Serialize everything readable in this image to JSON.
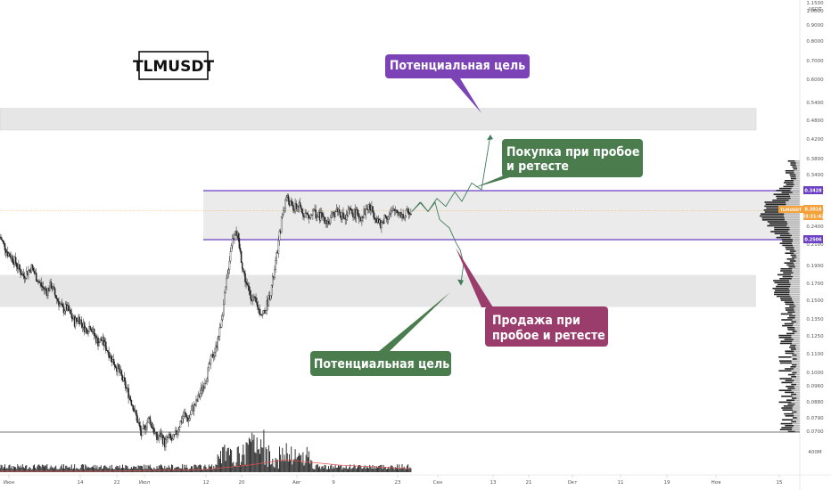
{
  "ticker": "TLMUSDT",
  "price_axis": {
    "currency": "USDT",
    "ticks": [
      "1.1500",
      "1.0000",
      "0.9000",
      "0.8000",
      "0.7000",
      "0.6000",
      "0.5400",
      "0.4800",
      "0.4200",
      "0.3800",
      "0.3400",
      "0.3000",
      "0.2700",
      "0.2400",
      "0.2100",
      "0.1900",
      "0.1700",
      "0.1500",
      "0.1350",
      "0.1250",
      "0.1100",
      "0.1000",
      "0.0960",
      "0.0880",
      "0.0790",
      "0.0700"
    ],
    "badge_resistance": "0.3428",
    "badge_current_label": "TLMUSDT",
    "badge_current_value": "0.3016",
    "badge_current_time": "03:31:42",
    "badge_support": "0.2506",
    "volume_label": "400M"
  },
  "date_axis": {
    "labels": [
      "Июн",
      "14",
      "22",
      "Июл",
      "12",
      "20",
      "Авг",
      "9",
      "23",
      "Сен",
      "13",
      "21",
      "Окт",
      "11",
      "19",
      "Ноя",
      "15"
    ]
  },
  "annotations": {
    "target_up": "Потенциальная цель",
    "buy": [
      "Покупка при пробое",
      "и ретесте"
    ],
    "sell": [
      "Продажа при",
      "пробое и ретесте"
    ],
    "target_down": "Потенциальная цель"
  },
  "colors": {
    "purple": "#7b43b5",
    "green": "#4a7c4e",
    "maroon": "#9a3d6c",
    "candle": "#222222",
    "zone": "#e6e6e6",
    "level_line": "#6a3fc4",
    "current_price": "#f4a13a"
  },
  "chart_data": {
    "type": "candlestick",
    "title": "TLMUSDT",
    "resistance": 0.3428,
    "support": 0.2506,
    "current_price": 0.3016,
    "zones": [
      [
        0.505,
        0.58
      ],
      [
        0.163,
        0.2
      ]
    ],
    "close_series": [
      0.255,
      0.242,
      0.23,
      0.224,
      0.216,
      0.206,
      0.199,
      0.204,
      0.21,
      0.2,
      0.19,
      0.184,
      0.18,
      0.188,
      0.176,
      0.168,
      0.16,
      0.162,
      0.155,
      0.148,
      0.152,
      0.146,
      0.14,
      0.145,
      0.136,
      0.13,
      0.132,
      0.126,
      0.12,
      0.114,
      0.11,
      0.104,
      0.098,
      0.092,
      0.086,
      0.079,
      0.072,
      0.076,
      0.08,
      0.075,
      0.07,
      0.072,
      0.068,
      0.071,
      0.069,
      0.073,
      0.078,
      0.082,
      0.079,
      0.085,
      0.088,
      0.094,
      0.1,
      0.108,
      0.118,
      0.125,
      0.14,
      0.165,
      0.2,
      0.245,
      0.27,
      0.238,
      0.205,
      0.185,
      0.175,
      0.168,
      0.16,
      0.155,
      0.165,
      0.18,
      0.205,
      0.245,
      0.295,
      0.33,
      0.315,
      0.305,
      0.312,
      0.3,
      0.295,
      0.288,
      0.3,
      0.29,
      0.292,
      0.285,
      0.28,
      0.295,
      0.305,
      0.293,
      0.286,
      0.3,
      0.297,
      0.295,
      0.29,
      0.3,
      0.31,
      0.3,
      0.288,
      0.272,
      0.29,
      0.293,
      0.297,
      0.304,
      0.296,
      0.29,
      0.3,
      0.302
    ],
    "projection_up": [
      0.3,
      0.318,
      0.3,
      0.326,
      0.31,
      0.34,
      0.32,
      0.36,
      0.345,
      0.49
    ],
    "projection_down": [
      0.3,
      0.318,
      0.3,
      0.318,
      0.285,
      0.27,
      0.244,
      0.235,
      0.215,
      0.19
    ]
  }
}
